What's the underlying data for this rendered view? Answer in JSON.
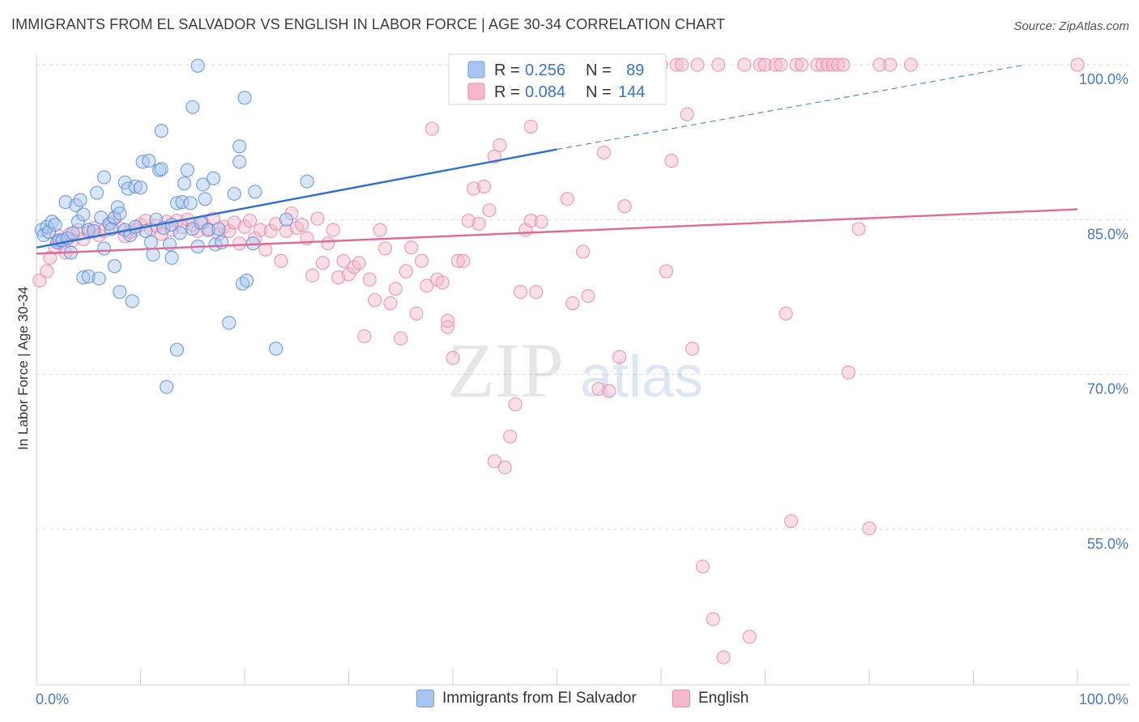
{
  "title": "IMMIGRANTS FROM EL SALVADOR VS ENGLISH IN LABOR FORCE | AGE 30-34 CORRELATION CHART",
  "source": "Source: ZipAtlas.com",
  "watermark": {
    "zip": "ZIP",
    "atlas": "atlas"
  },
  "legend": {
    "r_label": "R =",
    "n_label": "N =",
    "rows": [
      {
        "r": "0.256",
        "n": "89",
        "color": "#a8c6f0",
        "stroke": "#6f9de0"
      },
      {
        "r": "0.084",
        "n": "144",
        "color": "#f6b9cc",
        "stroke": "#e88aa8"
      }
    ]
  },
  "bottom_legend": [
    "Immigrants from El Salvador",
    "English"
  ],
  "colors": {
    "blue_fill": "#a8c6f0",
    "blue_stroke": "#5b8fd8",
    "blue_line": "#2f6fcf",
    "pink_fill": "#f6b9cc",
    "pink_stroke": "#e88aa8",
    "pink_line": "#e06a97",
    "axis_text": "#4a78c7"
  },
  "chart_data": {
    "type": "scatter",
    "title": "IMMIGRANTS FROM EL SALVADOR VS ENGLISH IN LABOR FORCE | AGE 30-34 CORRELATION CHART",
    "xlabel": "",
    "ylabel": "In Labor Force | Age 30-34",
    "xlim": [
      0,
      100
    ],
    "ylim": [
      40,
      102
    ],
    "x_tick_labels": [
      "0.0%",
      "100.0%"
    ],
    "y_ticks": [
      55,
      70,
      85,
      100
    ],
    "y_tick_labels": [
      "55.0%",
      "70.0%",
      "85.0%",
      "100.0%"
    ],
    "grid": true,
    "series": [
      {
        "name": "Immigrants from El Salvador",
        "trend": {
          "x0": 0,
          "y0": 82.3,
          "x1": 50,
          "y1": 91.8,
          "dash_to_x": 95,
          "dash_to_y": 100
        },
        "points": [
          [
            0.5,
            84.0
          ],
          [
            0.7,
            83.5
          ],
          [
            1.0,
            84.3
          ],
          [
            1.2,
            83.8
          ],
          [
            1.5,
            84.8
          ],
          [
            1.8,
            84.5
          ],
          [
            2.0,
            82.8
          ],
          [
            2.2,
            83.0
          ],
          [
            2.5,
            83.0
          ],
          [
            2.8,
            86.7
          ],
          [
            3.0,
            83.2
          ],
          [
            3.3,
            81.8
          ],
          [
            3.5,
            83.7
          ],
          [
            3.8,
            86.4
          ],
          [
            4.0,
            84.8
          ],
          [
            4.2,
            86.9
          ],
          [
            4.5,
            85.5
          ],
          [
            4.5,
            79.4
          ],
          [
            5.0,
            84.0
          ],
          [
            5.0,
            79.5
          ],
          [
            5.5,
            83.9
          ],
          [
            5.8,
            87.6
          ],
          [
            6.0,
            79.3
          ],
          [
            6.2,
            85.2
          ],
          [
            6.5,
            89.1
          ],
          [
            6.5,
            82.2
          ],
          [
            7.0,
            84.6
          ],
          [
            7.2,
            84.1
          ],
          [
            7.5,
            85.2
          ],
          [
            7.5,
            80.5
          ],
          [
            7.8,
            86.2
          ],
          [
            8.0,
            85.6
          ],
          [
            8.0,
            78.0
          ],
          [
            8.5,
            88.6
          ],
          [
            8.5,
            84.0
          ],
          [
            8.8,
            88.0
          ],
          [
            9.0,
            83.5
          ],
          [
            9.2,
            77.1
          ],
          [
            9.5,
            84.3
          ],
          [
            9.5,
            88.2
          ],
          [
            10.0,
            88.1
          ],
          [
            10.2,
            90.6
          ],
          [
            10.5,
            83.9
          ],
          [
            10.8,
            90.7
          ],
          [
            11.0,
            82.8
          ],
          [
            11.2,
            81.6
          ],
          [
            11.5,
            85.0
          ],
          [
            11.8,
            89.8
          ],
          [
            12.0,
            89.9
          ],
          [
            12.0,
            93.6
          ],
          [
            12.2,
            84.2
          ],
          [
            12.5,
            68.8
          ],
          [
            12.8,
            82.6
          ],
          [
            13.0,
            81.3
          ],
          [
            13.0,
            84.5
          ],
          [
            13.5,
            72.4
          ],
          [
            13.5,
            86.6
          ],
          [
            13.8,
            83.7
          ],
          [
            14.0,
            86.7
          ],
          [
            14.2,
            88.5
          ],
          [
            14.5,
            89.8
          ],
          [
            14.8,
            86.6
          ],
          [
            15.0,
            84.1
          ],
          [
            15.0,
            95.9
          ],
          [
            15.5,
            82.4
          ],
          [
            15.8,
            84.7
          ],
          [
            15.5,
            99.9
          ],
          [
            16.0,
            88.4
          ],
          [
            16.2,
            87.0
          ],
          [
            16.5,
            84.0
          ],
          [
            17.0,
            89.0
          ],
          [
            17.2,
            82.6
          ],
          [
            17.5,
            84.1
          ],
          [
            17.8,
            82.8
          ],
          [
            18.5,
            75.0
          ],
          [
            19.0,
            87.5
          ],
          [
            19.5,
            92.1
          ],
          [
            19.5,
            90.6
          ],
          [
            19.8,
            78.8
          ],
          [
            20.0,
            96.8
          ],
          [
            20.2,
            79.1
          ],
          [
            20.8,
            82.7
          ],
          [
            21.0,
            87.7
          ],
          [
            23.0,
            72.5
          ],
          [
            24.0,
            85.0
          ],
          [
            26.0,
            88.7
          ],
          [
            43.0,
            100.0
          ]
        ]
      },
      {
        "name": "English",
        "trend": {
          "x0": 0,
          "y0": 81.7,
          "x1": 100,
          "y1": 86.0
        },
        "points": [
          [
            0.3,
            79.1
          ],
          [
            1.0,
            80.0
          ],
          [
            1.3,
            81.3
          ],
          [
            1.8,
            82.3
          ],
          [
            2.0,
            83.5
          ],
          [
            2.3,
            82.7
          ],
          [
            2.8,
            81.8
          ],
          [
            3.2,
            83.6
          ],
          [
            3.5,
            83.0
          ],
          [
            4.0,
            84.0
          ],
          [
            4.5,
            83.1
          ],
          [
            5.0,
            83.8
          ],
          [
            5.5,
            84.2
          ],
          [
            6.0,
            83.5
          ],
          [
            6.5,
            83.9
          ],
          [
            7.0,
            84.6
          ],
          [
            7.5,
            85.1
          ],
          [
            8.0,
            84.2
          ],
          [
            8.5,
            83.4
          ],
          [
            9.0,
            83.8
          ],
          [
            9.5,
            84.0
          ],
          [
            10.0,
            84.5
          ],
          [
            10.5,
            84.9
          ],
          [
            11.0,
            84.1
          ],
          [
            11.5,
            84.4
          ],
          [
            12.0,
            83.6
          ],
          [
            12.5,
            84.8
          ],
          [
            13.0,
            84.0
          ],
          [
            13.5,
            84.9
          ],
          [
            14.0,
            84.3
          ],
          [
            14.5,
            85.0
          ],
          [
            15.0,
            84.5
          ],
          [
            15.5,
            83.9
          ],
          [
            16.0,
            84.7
          ],
          [
            16.5,
            84.1
          ],
          [
            17.0,
            85.1
          ],
          [
            17.5,
            83.6
          ],
          [
            18.0,
            84.3
          ],
          [
            18.5,
            83.9
          ],
          [
            19.0,
            84.7
          ],
          [
            19.5,
            82.7
          ],
          [
            20.0,
            84.3
          ],
          [
            20.5,
            84.9
          ],
          [
            21.0,
            83.2
          ],
          [
            21.5,
            84.0
          ],
          [
            22.0,
            82.1
          ],
          [
            22.5,
            83.9
          ],
          [
            23.0,
            84.6
          ],
          [
            23.5,
            81.0
          ],
          [
            24.0,
            83.9
          ],
          [
            24.5,
            85.6
          ],
          [
            25.0,
            84.2
          ],
          [
            25.5,
            84.5
          ],
          [
            26.0,
            83.2
          ],
          [
            26.5,
            79.6
          ],
          [
            27.0,
            85.1
          ],
          [
            27.5,
            80.8
          ],
          [
            28.0,
            82.7
          ],
          [
            28.5,
            84.0
          ],
          [
            29.0,
            79.4
          ],
          [
            29.5,
            81.0
          ],
          [
            30.0,
            79.7
          ],
          [
            30.5,
            80.4
          ],
          [
            31.0,
            80.8
          ],
          [
            31.5,
            73.7
          ],
          [
            32.0,
            79.2
          ],
          [
            32.5,
            77.2
          ],
          [
            33.0,
            84.0
          ],
          [
            33.5,
            82.2
          ],
          [
            34.0,
            76.9
          ],
          [
            34.5,
            78.3
          ],
          [
            35.0,
            73.5
          ],
          [
            35.5,
            80.0
          ],
          [
            36.0,
            82.3
          ],
          [
            36.5,
            75.9
          ],
          [
            37.0,
            81.0
          ],
          [
            37.5,
            78.6
          ],
          [
            38.0,
            93.8
          ],
          [
            38.5,
            79.2
          ],
          [
            39.0,
            78.9
          ],
          [
            39.5,
            74.6
          ],
          [
            40.0,
            71.6
          ],
          [
            40.5,
            81.0
          ],
          [
            41.0,
            81.0
          ],
          [
            41.5,
            84.9
          ],
          [
            42.0,
            88.0
          ],
          [
            42.5,
            84.6
          ],
          [
            43.0,
            88.2
          ],
          [
            43.5,
            85.9
          ],
          [
            44.0,
            91.1
          ],
          [
            44.5,
            92.2
          ],
          [
            44.0,
            61.6
          ],
          [
            45.0,
            61.0
          ],
          [
            45.5,
            64.0
          ],
          [
            46.0,
            67.1
          ],
          [
            46.5,
            78.0
          ],
          [
            47.0,
            84.0
          ],
          [
            47.5,
            94.0
          ],
          [
            47.5,
            84.9
          ],
          [
            48.0,
            78.0
          ],
          [
            48.5,
            84.8
          ],
          [
            49.0,
            100.0
          ],
          [
            50.0,
            100.0
          ],
          [
            51.0,
            87.0
          ],
          [
            51.5,
            76.9
          ],
          [
            52.0,
            100.0
          ],
          [
            52.5,
            81.9
          ],
          [
            53.0,
            77.6
          ],
          [
            53.5,
            100.0
          ],
          [
            54.0,
            68.6
          ],
          [
            54.5,
            91.5
          ],
          [
            55.0,
            68.4
          ],
          [
            56.0,
            71.7
          ],
          [
            56.5,
            86.3
          ],
          [
            60.0,
            100.0
          ],
          [
            60.5,
            80.0
          ],
          [
            61.0,
            90.7
          ],
          [
            61.5,
            100.0
          ],
          [
            62.0,
            100.0
          ],
          [
            62.5,
            95.2
          ],
          [
            63.0,
            72.5
          ],
          [
            63.5,
            100.0
          ],
          [
            64.0,
            51.4
          ],
          [
            65.0,
            46.3
          ],
          [
            65.5,
            100.0
          ],
          [
            66.0,
            42.6
          ],
          [
            68.0,
            100.0
          ],
          [
            68.5,
            44.6
          ],
          [
            69.5,
            100.0
          ],
          [
            70.0,
            100.0
          ],
          [
            71.0,
            100.0
          ],
          [
            71.5,
            100.0
          ],
          [
            72.0,
            75.9
          ],
          [
            72.5,
            55.8
          ],
          [
            73.0,
            100.0
          ],
          [
            73.5,
            100.0
          ],
          [
            75.0,
            100.0
          ],
          [
            75.5,
            100.0
          ],
          [
            76.0,
            100.0
          ],
          [
            76.5,
            100.0
          ],
          [
            77.0,
            100.0
          ],
          [
            77.5,
            100.0
          ],
          [
            78.0,
            70.2
          ],
          [
            79.0,
            84.1
          ],
          [
            80.0,
            55.1
          ],
          [
            81.0,
            100.0
          ],
          [
            82.0,
            100.0
          ],
          [
            84.0,
            100.0
          ],
          [
            100.0,
            100.0
          ],
          [
            39.5,
            75.2
          ]
        ]
      }
    ]
  }
}
